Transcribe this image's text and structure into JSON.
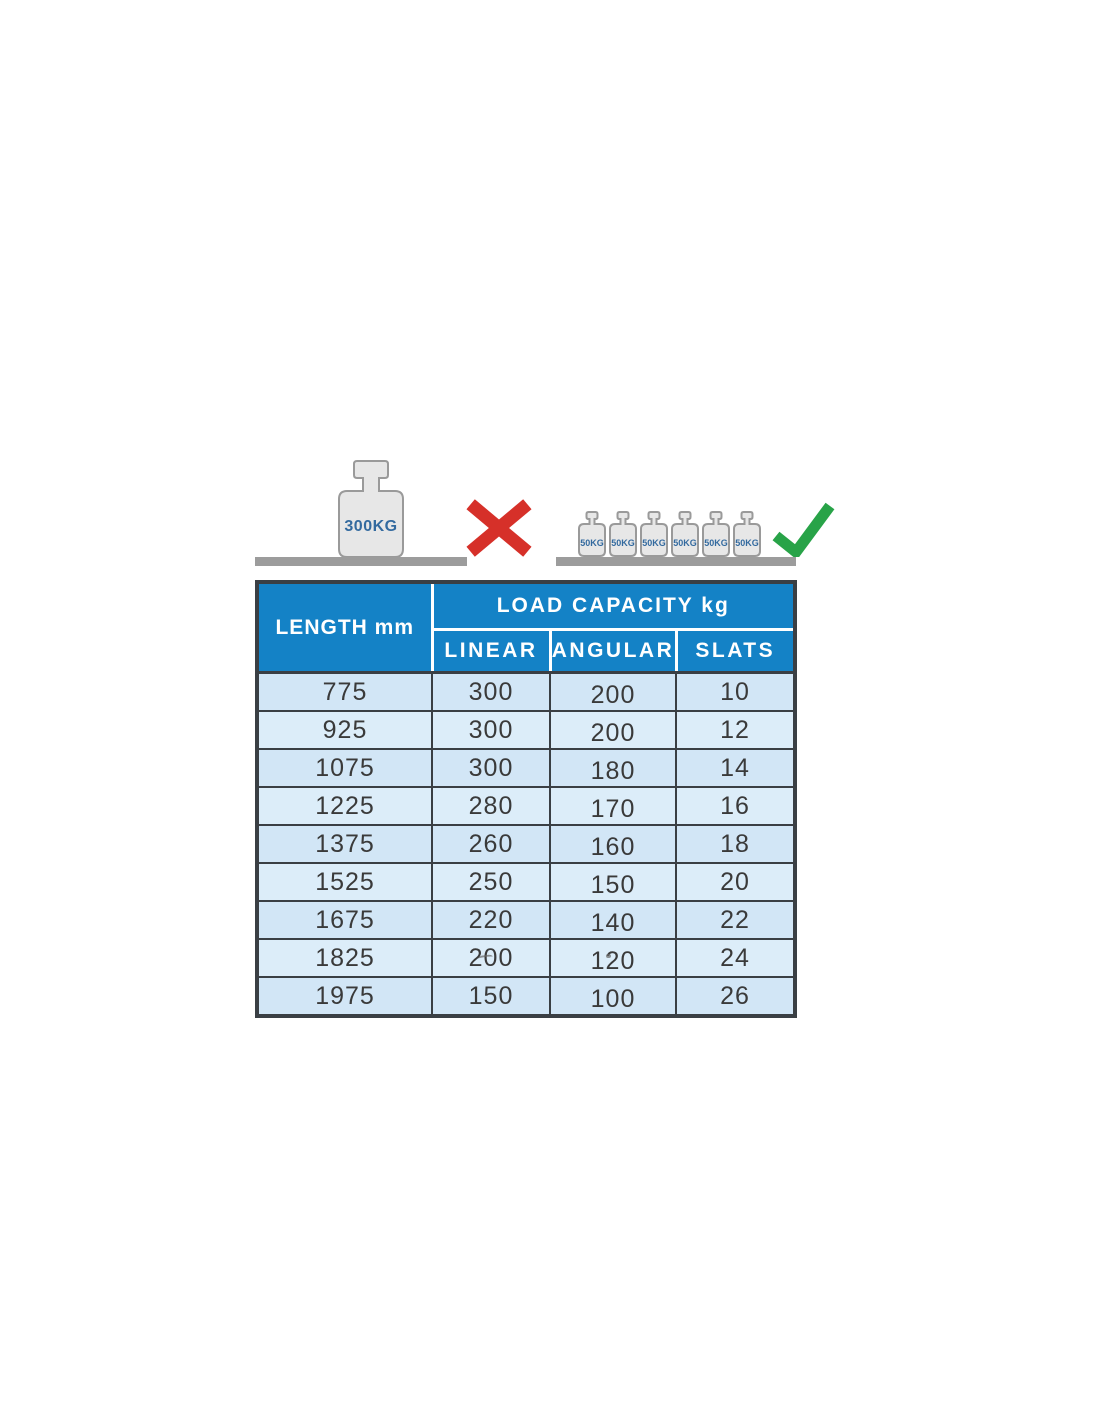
{
  "colors": {
    "header_bg": "#1482c6",
    "body_bg_odd": "#d2e6f6",
    "body_bg_even": "#dcedf9",
    "border_col": "#3a3f44",
    "cross_col": "#d63029",
    "check_col": "#28a348",
    "shelf_col": "#9c9c9c",
    "weight_fill": "#e7e7e7",
    "weight_border": "#9a9a9a",
    "weight_label_col": "#336a9f"
  },
  "illustration": {
    "wrong": {
      "weight_label": "300KG"
    },
    "right": {
      "weight_labels": [
        "50KG",
        "50KG",
        "50KG",
        "50KG",
        "50KG",
        "50KG"
      ]
    }
  },
  "table": {
    "header": {
      "length": "LENGTH mm",
      "load_capacity": "LOAD CAPACITY kg",
      "sub": [
        "LINEAR",
        "ANGULAR",
        "SLATS"
      ]
    },
    "rows": [
      [
        "775",
        "300",
        "200",
        "10"
      ],
      [
        "925",
        "300",
        "200",
        "12"
      ],
      [
        "1075",
        "300",
        "180",
        "14"
      ],
      [
        "1225",
        "280",
        "170",
        "16"
      ],
      [
        "1375",
        "260",
        "160",
        "18"
      ],
      [
        "1525",
        "250",
        "150",
        "20"
      ],
      [
        "1675",
        "220",
        "140",
        "22"
      ],
      [
        "1825",
        "200",
        "120",
        "24"
      ],
      [
        "1975",
        "150",
        "100",
        "26"
      ]
    ]
  }
}
